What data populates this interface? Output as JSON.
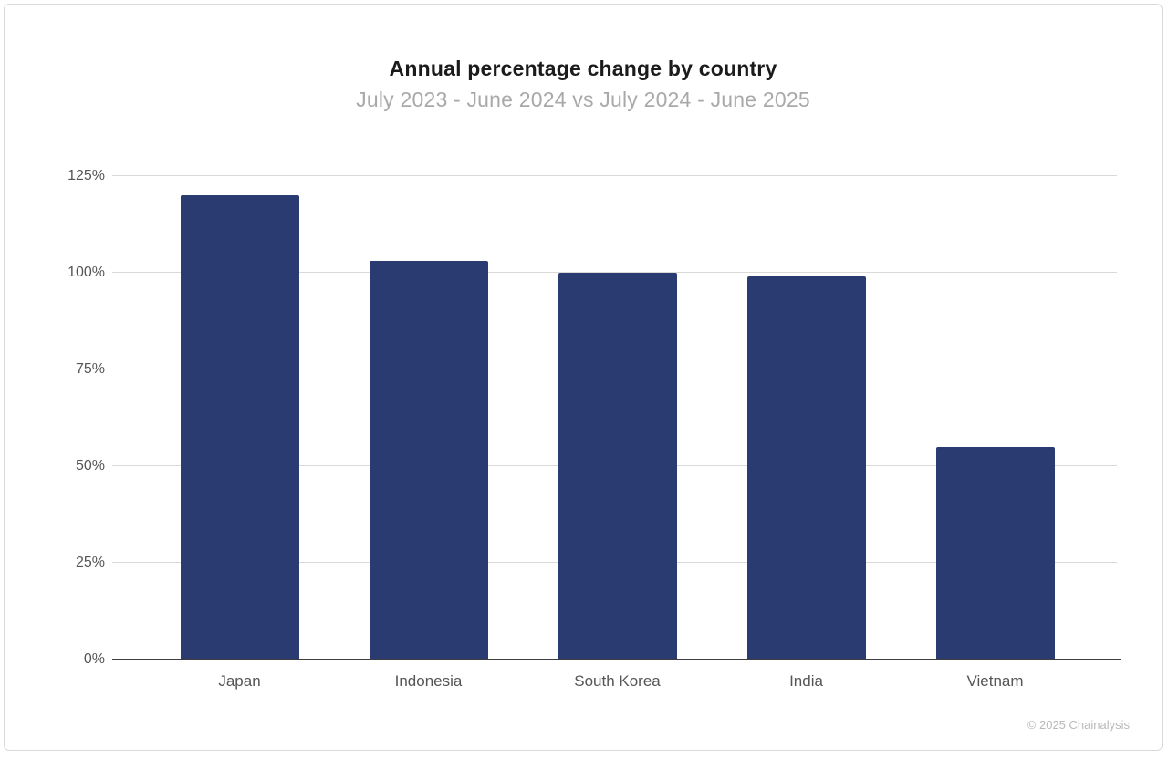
{
  "chart_data": {
    "type": "bar",
    "title": "Annual percentage change by country",
    "subtitle": "July 2023 - June 2024 vs July 2024 - June 2025",
    "categories": [
      "Japan",
      "Indonesia",
      "South Korea",
      "India",
      "Vietnam"
    ],
    "values": [
      120,
      103,
      100,
      99,
      55
    ],
    "unit": "%",
    "xlabel": "",
    "ylabel": "",
    "ylim": [
      0,
      125
    ],
    "yticks": [
      0,
      25,
      50,
      75,
      100,
      125
    ],
    "ytick_labels": [
      "0%",
      "25%",
      "50%",
      "75%",
      "100%",
      "125%"
    ],
    "grid": true,
    "legend": "none",
    "colors": {
      "bar": "#2a3b72",
      "gridline": "#d9d9d9",
      "axis_line": "#3d3d3d",
      "title_text": "#1b1b1b",
      "subtitle_text": "#a9a9a9",
      "tick_text": "#555555",
      "footer_text": "#b9b9b9",
      "card_border": "#d9d9d9",
      "background": "#ffffff"
    }
  },
  "footer": {
    "copyright": "© 2025 Chainalysis"
  }
}
